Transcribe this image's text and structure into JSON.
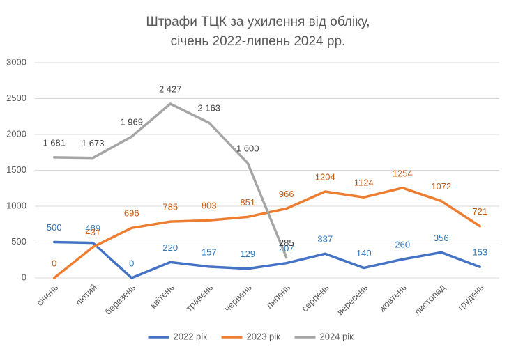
{
  "chart_data": {
    "type": "line",
    "title": [
      "Штрафи ТЦК за ухилення від обліку,",
      "січень 2022-липень 2024 рр."
    ],
    "categories": [
      "січень",
      "лютий",
      "березень",
      "квітень",
      "травень",
      "червень",
      "липень",
      "серпень",
      "вересень",
      "жовтень",
      "листопад",
      "грудень"
    ],
    "series": [
      {
        "name": "2022 рік",
        "color": "#4472c4",
        "values": [
          500,
          489,
          0,
          220,
          157,
          129,
          207,
          337,
          140,
          260,
          356,
          153
        ]
      },
      {
        "name": "2023 рік",
        "color": "#ed7d31",
        "values": [
          0,
          431,
          696,
          785,
          803,
          851,
          966,
          1204,
          1124,
          1254,
          1072,
          721
        ]
      },
      {
        "name": "2024 рік",
        "color": "#a5a5a5",
        "values": [
          1681,
          1673,
          1969,
          2427,
          2163,
          1600,
          285,
          null,
          null,
          null,
          null,
          null
        ],
        "value_labels": [
          "1 681",
          "1 673",
          "1 969",
          "2 427",
          "2 163",
          "1 600",
          "285",
          null,
          null,
          null,
          null,
          null
        ]
      }
    ],
    "ylim": [
      0,
      3000
    ],
    "yticks": [
      0,
      500,
      1000,
      1500,
      2000,
      2500,
      3000
    ],
    "grid": true,
    "legend": "bottom"
  }
}
